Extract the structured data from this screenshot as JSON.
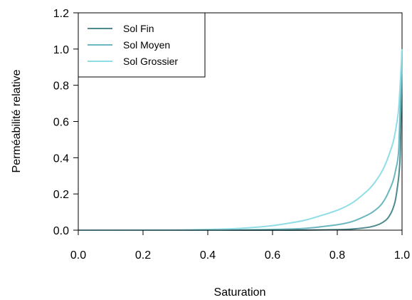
{
  "chart_data": {
    "type": "line",
    "xlabel": "Saturation",
    "ylabel": "Perméabilité relative",
    "xlim": [
      0.0,
      1.0
    ],
    "ylim": [
      0.0,
      1.2
    ],
    "x_ticks": [
      "0.0",
      "0.2",
      "0.4",
      "0.6",
      "0.8",
      "1.0"
    ],
    "y_ticks": [
      "0.0",
      "0.2",
      "0.4",
      "0.6",
      "0.8",
      "1.0",
      "1.2"
    ],
    "legend_position": "top-left",
    "grid": false,
    "series": [
      {
        "name": "Sol Fin",
        "color": "#4f8a8f",
        "x": [
          0.0,
          0.5,
          0.6,
          0.7,
          0.8,
          0.85,
          0.9,
          0.93,
          0.95,
          0.96,
          0.97,
          0.98,
          0.99,
          0.995,
          1.0
        ],
        "y": [
          0.0,
          0.0,
          0.0,
          0.0005,
          0.003,
          0.007,
          0.017,
          0.033,
          0.055,
          0.076,
          0.11,
          0.17,
          0.3,
          0.45,
          1.0
        ]
      },
      {
        "name": "Sol Moyen",
        "color": "#6ab7bf",
        "x": [
          0.0,
          0.4,
          0.5,
          0.6,
          0.7,
          0.8,
          0.85,
          0.9,
          0.93,
          0.95,
          0.97,
          0.98,
          0.99,
          1.0
        ],
        "y": [
          0.0,
          0.0,
          0.0015,
          0.004,
          0.01,
          0.03,
          0.05,
          0.09,
          0.13,
          0.18,
          0.26,
          0.33,
          0.45,
          1.0
        ]
      },
      {
        "name": "Sol Grossier",
        "color": "#8fdde6",
        "x": [
          0.0,
          0.3,
          0.4,
          0.5,
          0.6,
          0.7,
          0.8,
          0.85,
          0.9,
          0.93,
          0.95,
          0.97,
          0.98,
          0.99,
          1.0
        ],
        "y": [
          0.0,
          0.001,
          0.004,
          0.01,
          0.025,
          0.055,
          0.11,
          0.155,
          0.23,
          0.3,
          0.37,
          0.47,
          0.55,
          0.68,
          1.0
        ]
      }
    ]
  }
}
